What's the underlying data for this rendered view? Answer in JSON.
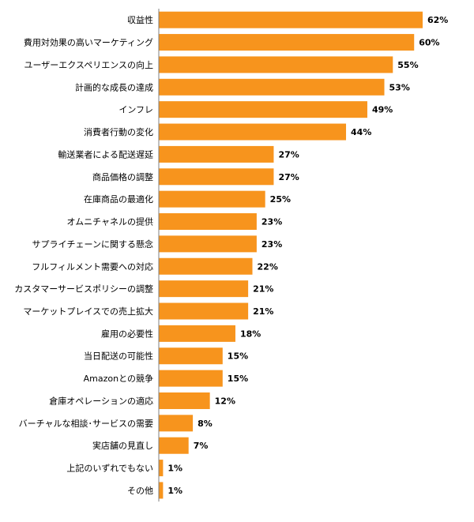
{
  "chart_data": {
    "type": "bar",
    "orientation": "horizontal",
    "title": "",
    "xlabel": "",
    "ylabel": "",
    "value_suffix": "%",
    "xlim": [
      0,
      62
    ],
    "grid": false,
    "legend": "none",
    "bar_color": "#F7941D",
    "axis_color": "#7F7F7F",
    "categories": [
      "収益性",
      "費用対効果の高いマーケティング",
      "ユーザーエクスペリエンスの向上",
      "計画的な成長の達成",
      "インフレ",
      "消費者行動の変化",
      "輸送業者による配送遅延",
      "商品価格の調整",
      "在庫商品の最適化",
      "オムニチャネルの提供",
      "サプライチェーンに関する懸念",
      "フルフィルメント需要への対応",
      "カスタマーサービスポリシーの調整",
      "マーケットプレイスでの売上拡大",
      "雇用の必要性",
      "当日配送の可能性",
      "Amazonとの競争",
      "倉庫オペレーションの適応",
      "バーチャルな相談･サービスの需要",
      "実店舗の見直し",
      "上記のいずれでもない",
      "その他"
    ],
    "values": [
      62,
      60,
      55,
      53,
      49,
      44,
      27,
      27,
      25,
      23,
      23,
      22,
      21,
      21,
      18,
      15,
      15,
      12,
      8,
      7,
      1,
      1
    ]
  }
}
